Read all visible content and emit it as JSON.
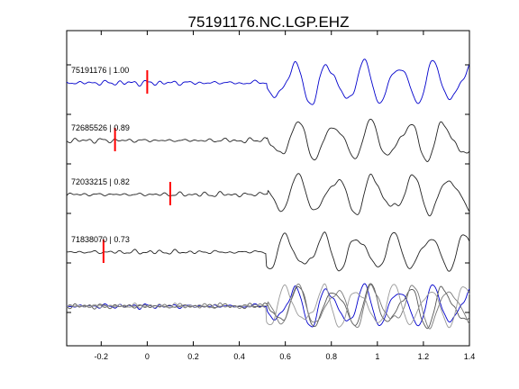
{
  "chart_data": {
    "type": "line",
    "title": "75191176.NC.LGP.EHZ",
    "xlabel": "",
    "ylabel": "",
    "xlim": [
      -0.35,
      1.4
    ],
    "xticks": [
      -0.2,
      0,
      0.2,
      0.4,
      0.6,
      0.8,
      1,
      1.2,
      1.4
    ],
    "xtick_labels": [
      "-0.2",
      "0",
      "0.2",
      "0.4",
      "0.6",
      "0.8",
      "1",
      "1.2",
      "1.4"
    ],
    "grid": false,
    "legend": "none",
    "traces": [
      {
        "label": "75191176 | 1.00",
        "pick": 0.0,
        "color": "#0000cc"
      },
      {
        "label": "72685526 | 0.89",
        "pick": -0.14,
        "color": "#222222"
      },
      {
        "label": "72033215 | 0.82",
        "pick": 0.1,
        "color": "#222222"
      },
      {
        "label": "71838070 | 0.73",
        "pick": -0.19,
        "color": "#222222"
      }
    ],
    "overlay_colors": [
      "#0000cc",
      "#555555",
      "#777777",
      "#999999"
    ],
    "pick_color": "#ff0000"
  }
}
